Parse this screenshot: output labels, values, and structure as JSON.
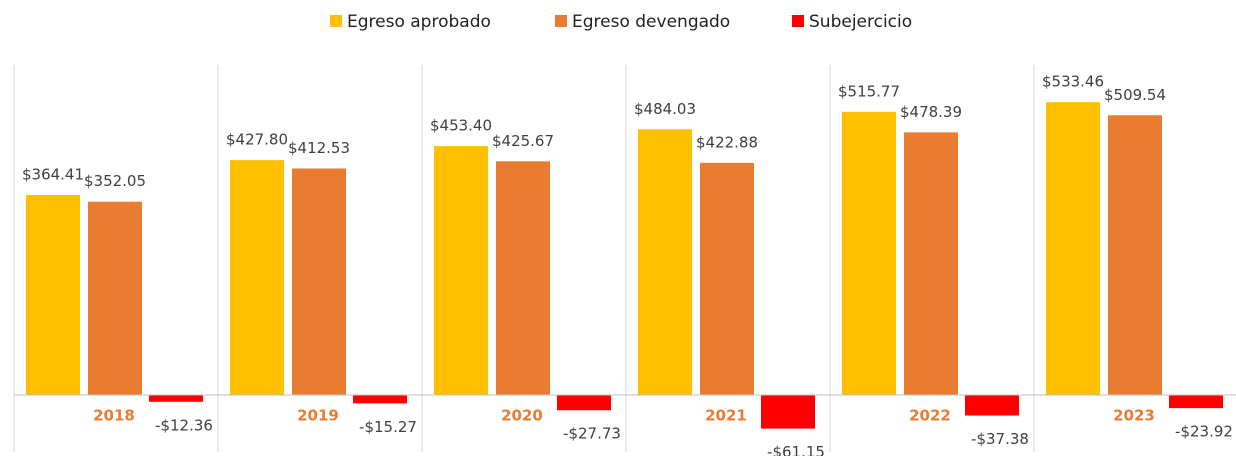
{
  "chart_data": {
    "type": "bar",
    "categories": [
      "2018",
      "2019",
      "2020",
      "2021",
      "2022",
      "2023"
    ],
    "series": [
      {
        "name": "Egreso aprobado",
        "color": "#FFC000",
        "values": [
          364.41,
          427.8,
          453.4,
          484.03,
          515.77,
          533.46
        ],
        "value_labels": [
          "$364.41",
          "$427.80",
          "$453.40",
          "$484.03",
          "$515.77",
          "$533.46"
        ]
      },
      {
        "name": "Egreso devengado",
        "color": "#E97C30",
        "values": [
          352.05,
          412.53,
          425.67,
          422.88,
          478.39,
          509.54
        ],
        "value_labels": [
          "$352.05",
          "$412.53",
          "$425.67",
          "$422.88",
          "$478.39",
          "$509.54"
        ]
      },
      {
        "name": "Subejercicio",
        "color": "#FF0000",
        "values": [
          -12.36,
          -15.27,
          -27.73,
          -61.15,
          -37.38,
          -23.92
        ],
        "value_labels": [
          "-$12.36",
          "-$15.27",
          "-$27.73",
          "-$61.15",
          "-$37.38",
          "-$23.92"
        ]
      }
    ],
    "legend": "top"
  }
}
